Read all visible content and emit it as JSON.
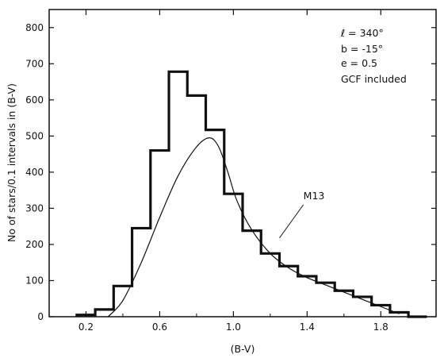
{
  "chart_data": {
    "type": "line",
    "title": "",
    "xlabel": "(B-V)",
    "ylabel": "No of stars/0.1 intervals in (B-V)",
    "xlim": [
      0.0,
      2.1
    ],
    "ylim": [
      0,
      850
    ],
    "x_ticks": [
      0.2,
      0.6,
      1.0,
      1.4,
      1.8
    ],
    "x_tick_labels": [
      "0.2",
      "0.6",
      "1.0",
      "1.4",
      "1.8"
    ],
    "x_minor_ticks": [
      0.4,
      0.8,
      1.2,
      1.6
    ],
    "y_ticks": [
      0,
      100,
      200,
      300,
      400,
      500,
      600,
      700,
      800
    ],
    "y_tick_labels": [
      "0",
      "100",
      "200",
      "300",
      "400",
      "500",
      "600",
      "700",
      "800"
    ],
    "grid": false,
    "series": [
      {
        "style": "step-histogram",
        "bin_width": 0.1,
        "bin_starts": [
          0.15,
          0.25,
          0.35,
          0.45,
          0.55,
          0.65,
          0.75,
          0.85,
          0.95,
          1.05,
          1.15,
          1.25,
          1.35,
          1.45,
          1.55,
          1.65,
          1.75,
          1.85,
          1.95
        ],
        "values": [
          5,
          20,
          85,
          245,
          460,
          678,
          612,
          517,
          340,
          238,
          175,
          140,
          112,
          94,
          72,
          55,
          32,
          12,
          0
        ]
      },
      {
        "name": "M13",
        "style": "smooth-curve",
        "x": [
          0.32,
          0.4,
          0.5,
          0.6,
          0.7,
          0.8,
          0.87,
          0.92,
          0.97,
          1.02,
          1.1,
          1.2,
          1.3,
          1.4,
          1.5,
          1.6,
          1.7,
          1.8,
          1.9
        ],
        "y": [
          0,
          45,
          150,
          275,
          390,
          470,
          495,
          470,
          400,
          320,
          240,
          175,
          135,
          108,
          88,
          68,
          48,
          28,
          8
        ]
      }
    ],
    "annotations": {
      "params": [
        "ℓ = 340°",
        "b = -15°",
        "e = 0.5",
        "GCF included"
      ],
      "curve_label": "M13"
    }
  }
}
